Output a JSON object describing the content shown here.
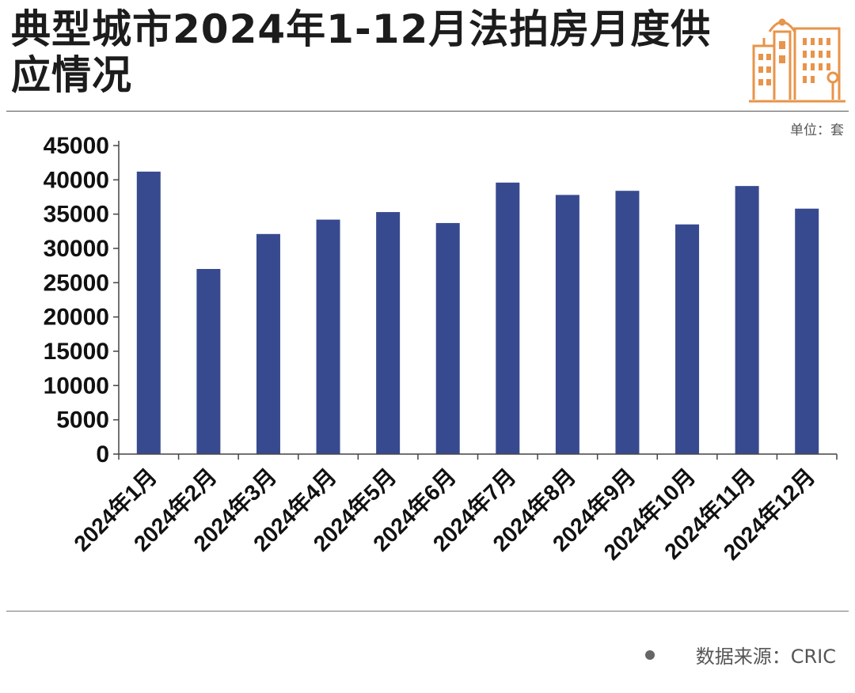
{
  "title": "典型城市2024年1-12月法拍房月度供应情况",
  "unit_label": "单位：套",
  "source_label": "数据来源：CRIC",
  "colors": {
    "bar": "#384a8f",
    "logo": "#e8944a",
    "axis": "#444444"
  },
  "chart_data": {
    "type": "bar",
    "categories": [
      "2024年1月",
      "2024年2月",
      "2024年3月",
      "2024年4月",
      "2024年5月",
      "2024年6月",
      "2024年7月",
      "2024年8月",
      "2024年9月",
      "2024年10月",
      "2024年11月",
      "2024年12月"
    ],
    "values": [
      41200,
      27000,
      32100,
      34200,
      35300,
      33700,
      39600,
      37800,
      38400,
      33500,
      39100,
      35800
    ],
    "ylim": [
      0,
      45000
    ],
    "yticks": [
      0,
      5000,
      10000,
      15000,
      20000,
      25000,
      30000,
      35000,
      40000,
      45000
    ],
    "grid": false,
    "legend": "none"
  }
}
